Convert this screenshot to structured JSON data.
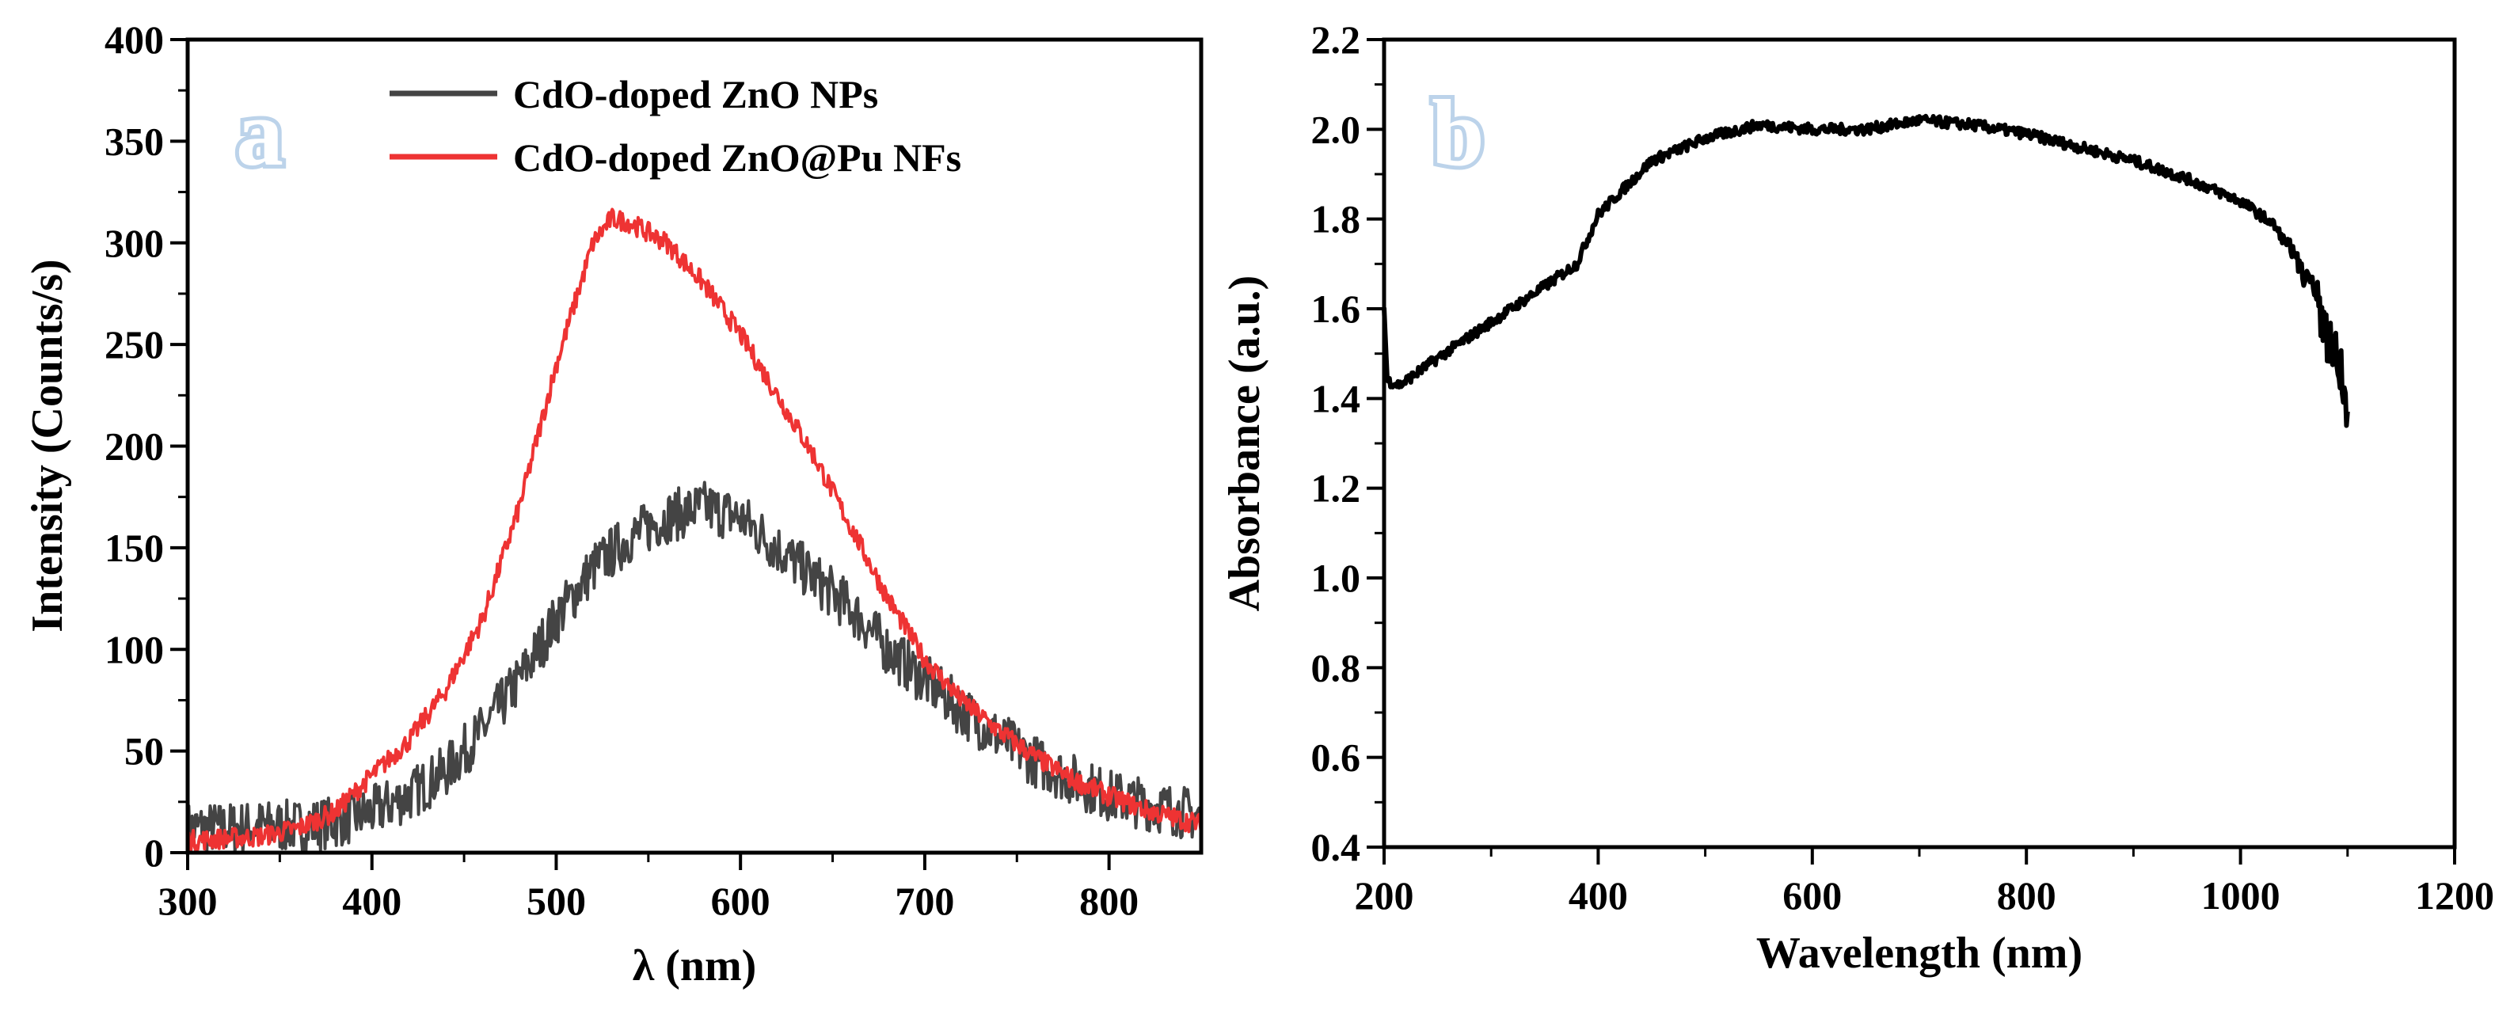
{
  "chart_data": [
    {
      "panel": "a",
      "type": "line",
      "xlabel": "λ (nm)",
      "ylabel": "Intensity (Counts/s)",
      "xlim": [
        300,
        850
      ],
      "ylim": [
        0,
        400
      ],
      "xticks": [
        300,
        400,
        500,
        600,
        700,
        800
      ],
      "yticks": [
        0,
        50,
        100,
        150,
        200,
        250,
        300,
        350,
        400
      ],
      "legend": "top-center",
      "series": [
        {
          "name": "CdO-doped ZnO NPs",
          "color": "#444444",
          "x": [
            300,
            320,
            340,
            360,
            380,
            400,
            420,
            440,
            460,
            480,
            500,
            520,
            540,
            560,
            580,
            600,
            620,
            640,
            660,
            680,
            700,
            720,
            740,
            760,
            780,
            800,
            820,
            840,
            850
          ],
          "y": [
            12,
            12,
            13,
            13,
            15,
            20,
            28,
            40,
            60,
            85,
            115,
            140,
            155,
            165,
            170,
            165,
            150,
            135,
            120,
            100,
            85,
            70,
            57,
            45,
            36,
            28,
            24,
            20,
            18
          ],
          "noise": 13
        },
        {
          "name": "CdO-doped ZnO@Pu NFs",
          "color": "#ee3333",
          "x": [
            300,
            320,
            340,
            360,
            380,
            400,
            420,
            440,
            460,
            480,
            500,
            520,
            530,
            540,
            560,
            580,
            600,
            620,
            640,
            660,
            680,
            700,
            720,
            740,
            760,
            780,
            800,
            820,
            840,
            850
          ],
          "y": [
            6,
            7,
            8,
            12,
            20,
            38,
            55,
            80,
            115,
            170,
            240,
            300,
            312,
            310,
            300,
            280,
            255,
            225,
            195,
            160,
            125,
            95,
            75,
            60,
            47,
            36,
            28,
            21,
            16,
            14
          ],
          "noise": 5
        }
      ]
    },
    {
      "panel": "b",
      "type": "line",
      "xlabel": "Wavelength (nm)",
      "ylabel": "Absorbance (a.u.)",
      "xlim": [
        200,
        1200
      ],
      "ylim": [
        0.4,
        2.2
      ],
      "xticks": [
        200,
        400,
        600,
        800,
        1000,
        1200
      ],
      "yticks": [
        0.4,
        0.6,
        0.8,
        1.0,
        1.2,
        1.4,
        1.6,
        1.8,
        2.0,
        2.2
      ],
      "series": [
        {
          "name": "Absorbance",
          "color": "#000000",
          "x": [
            200,
            203,
            215,
            250,
            300,
            350,
            380,
            400,
            450,
            500,
            550,
            600,
            650,
            700,
            750,
            800,
            850,
            900,
            950,
            1000,
            1030,
            1050,
            1060,
            1070,
            1080,
            1090,
            1100
          ],
          "y": [
            1.6,
            1.44,
            1.43,
            1.49,
            1.57,
            1.65,
            1.7,
            1.81,
            1.93,
            1.98,
            2.01,
            2.0,
            2.0,
            2.02,
            2.01,
            1.99,
            1.96,
            1.93,
            1.89,
            1.84,
            1.79,
            1.72,
            1.68,
            1.62,
            1.55,
            1.47,
            1.37
          ],
          "noise": 0.012
        }
      ]
    }
  ]
}
